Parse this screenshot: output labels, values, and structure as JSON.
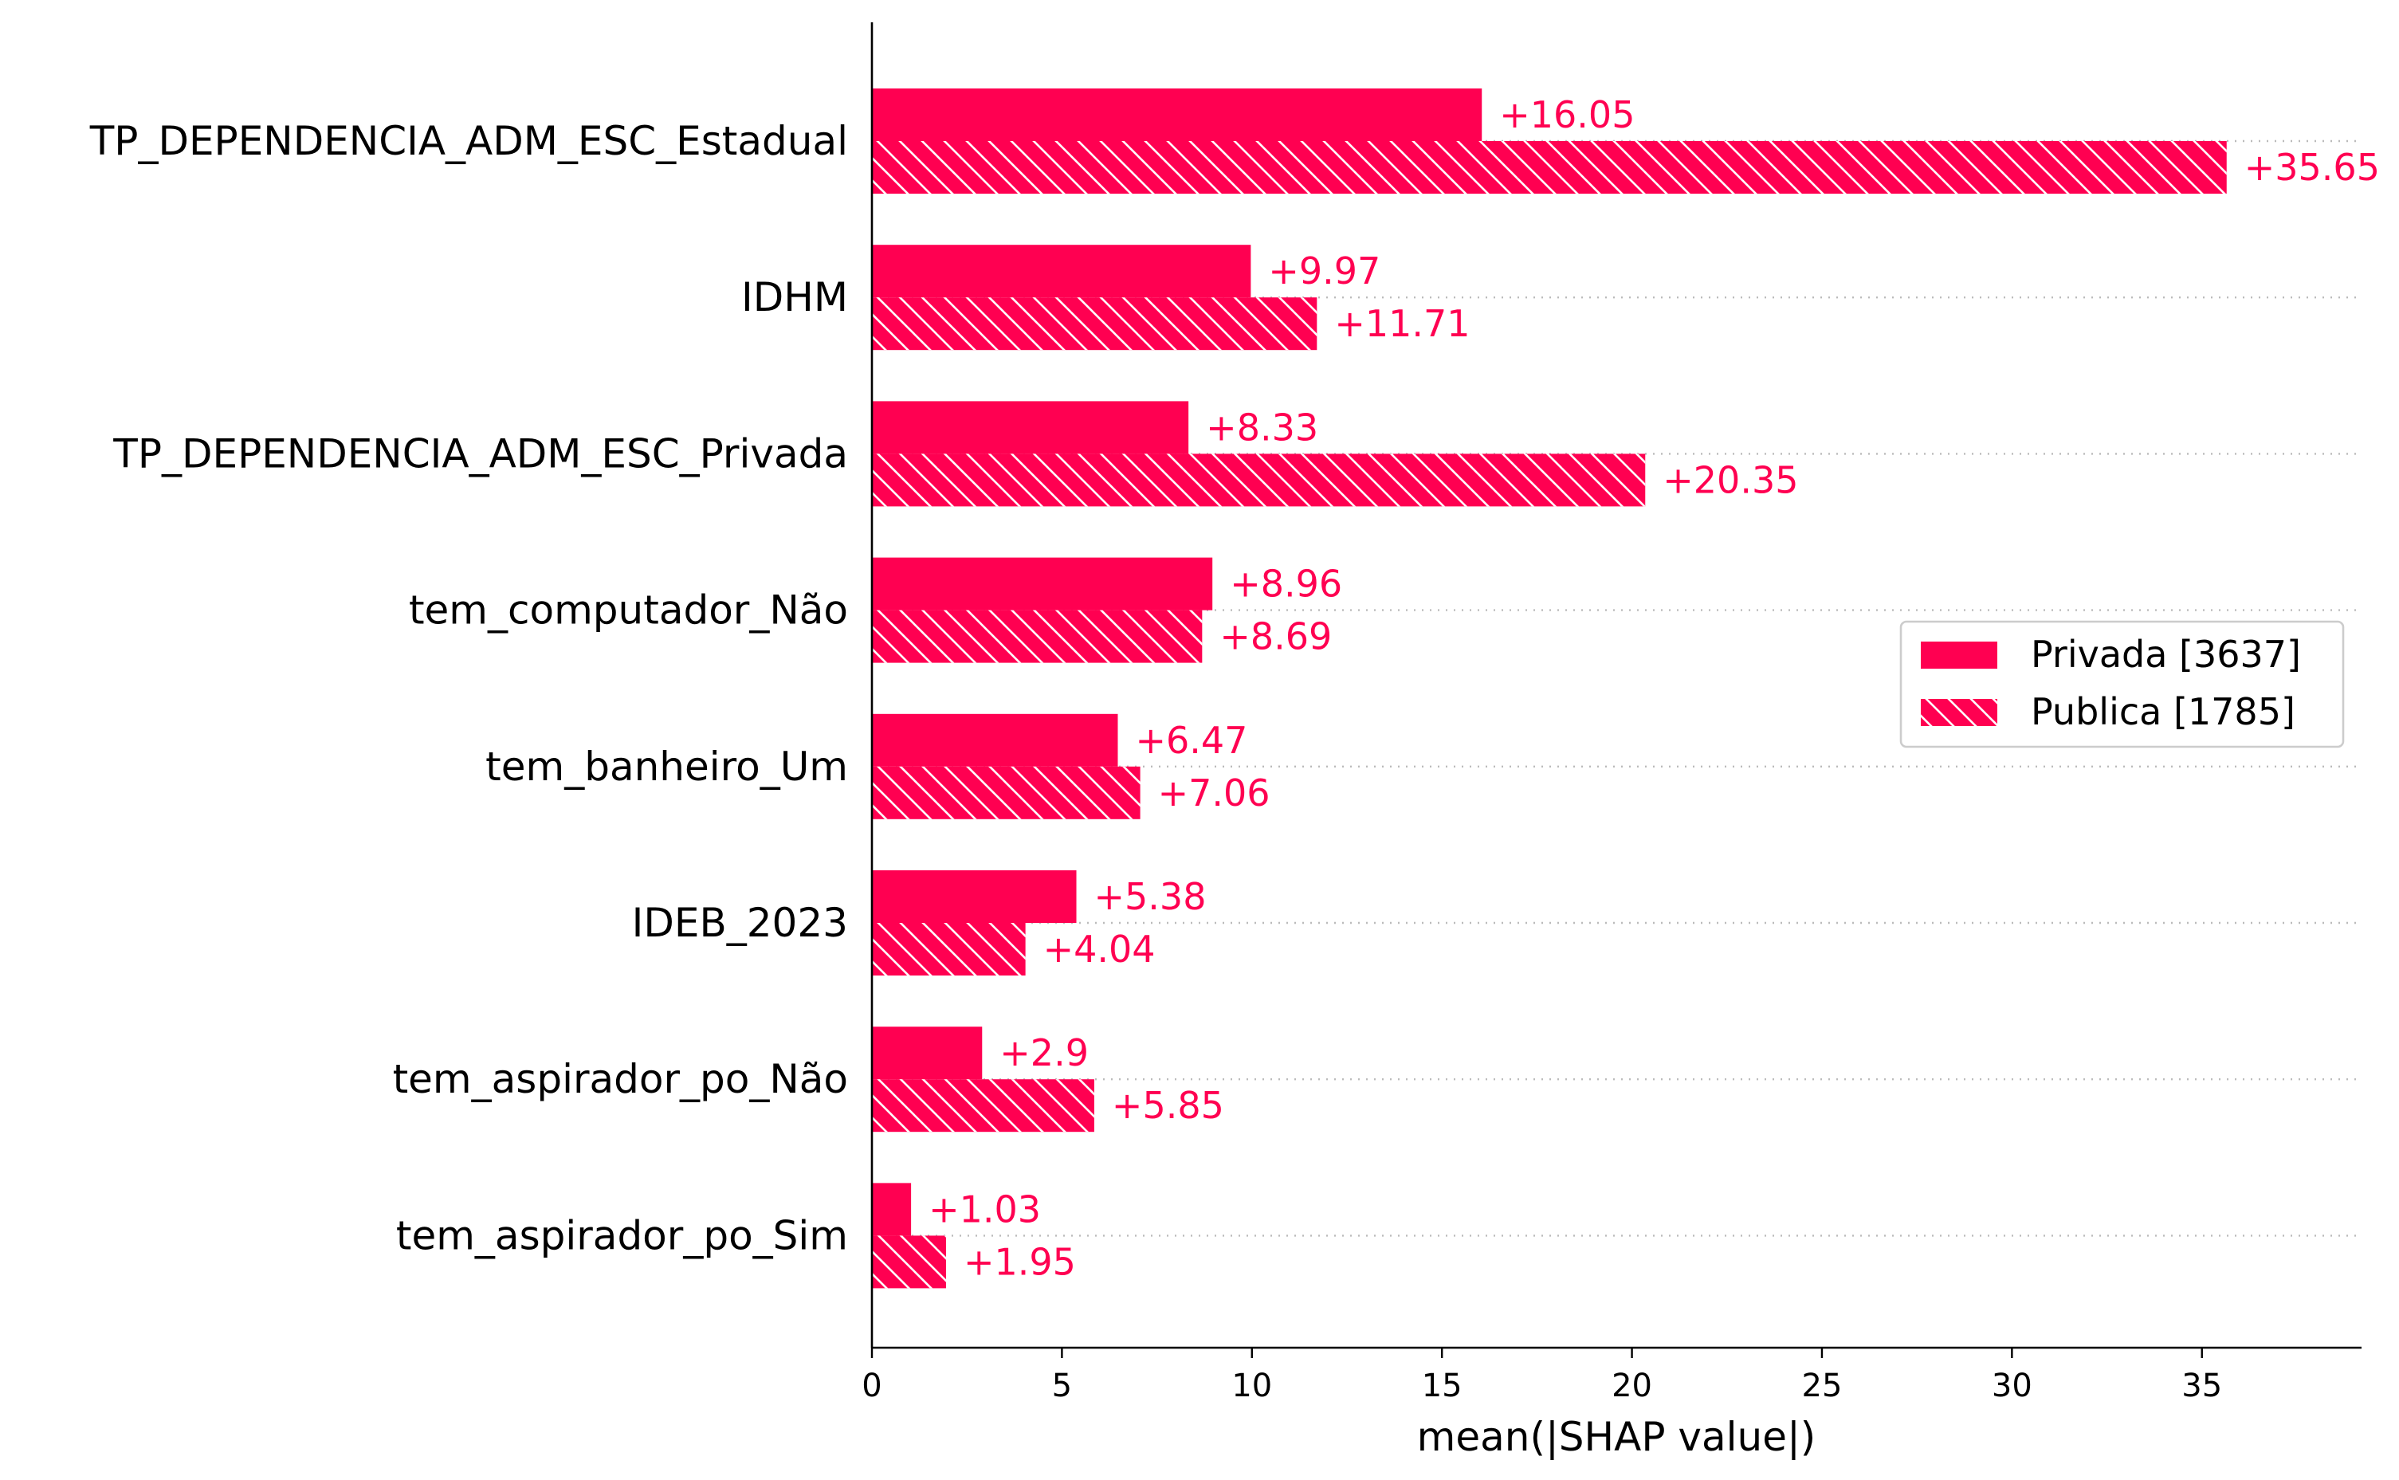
{
  "chart_data": {
    "type": "bar",
    "orientation": "horizontal",
    "xlabel": "mean(|SHAP value|)",
    "xlim": [
      0,
      39.2
    ],
    "xticks": [
      0,
      5,
      10,
      15,
      20,
      25,
      30,
      35
    ],
    "categories": [
      "TP_DEPENDENCIA_ADM_ESC_Estadual",
      "IDHM",
      "TP_DEPENDENCIA_ADM_ESC_Privada",
      "tem_computador_Não",
      "tem_banheiro_Um",
      "IDEB_2023",
      "tem_aspirador_po_Não",
      "tem_aspirador_po_Sim"
    ],
    "series": [
      {
        "name": "Privada [3637]",
        "hatch": false,
        "values": [
          16.05,
          9.97,
          8.33,
          8.96,
          6.47,
          5.38,
          2.9,
          1.03
        ],
        "labels": [
          "+16.05",
          "+9.97",
          "+8.33",
          "+8.96",
          "+6.47",
          "+5.38",
          "+2.9",
          "+1.03"
        ]
      },
      {
        "name": "Publica [1785]",
        "hatch": true,
        "values": [
          35.65,
          11.71,
          20.35,
          8.69,
          7.06,
          4.04,
          5.85,
          1.95
        ],
        "labels": [
          "+35.65",
          "+11.71",
          "+20.35",
          "+8.69",
          "+7.06",
          "+4.04",
          "+5.85",
          "+1.95"
        ]
      }
    ],
    "grid": "dotted horizontal lines at each category",
    "legend_position": "right"
  },
  "colors": {
    "bar": "#ff0051",
    "label": "#ff0051",
    "axis": "#000000",
    "grid": "#bbbbbb"
  }
}
